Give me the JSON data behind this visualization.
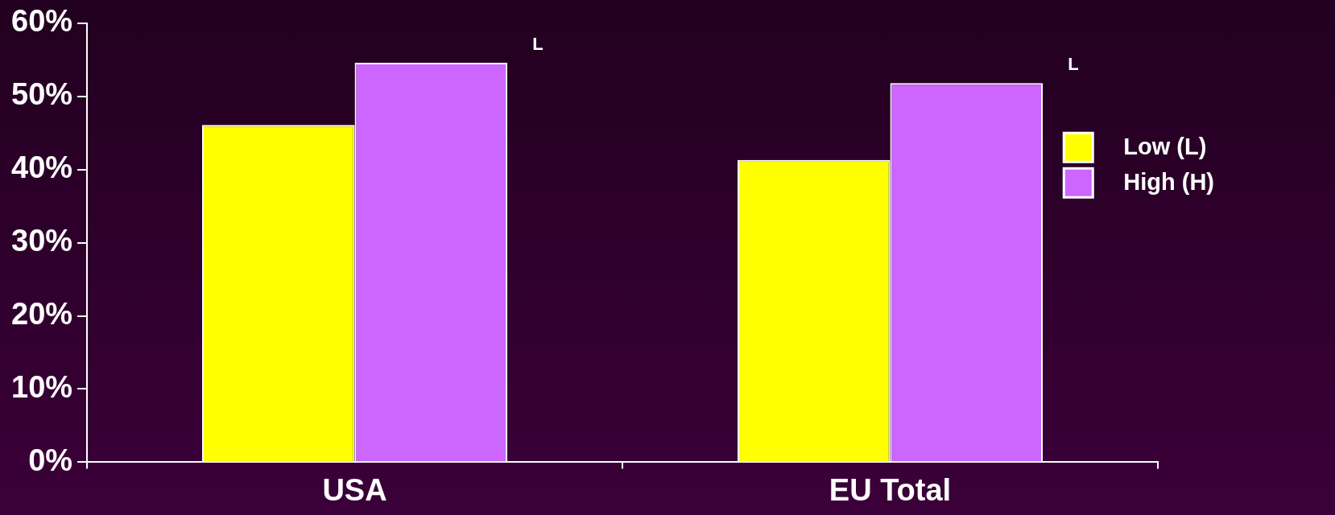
{
  "chart_data": {
    "type": "bar",
    "categories": [
      "USA",
      "EU Total"
    ],
    "series": [
      {
        "name": "Low (L)",
        "color": "#ffff00",
        "values": [
          46.1,
          41.3
        ]
      },
      {
        "name": "High (H)",
        "color": "#cc66ff",
        "values": [
          54.6,
          51.8
        ]
      }
    ],
    "ylim": [
      0,
      60
    ],
    "yticks": [
      {
        "value": 0,
        "label": "0%"
      },
      {
        "value": 10,
        "label": "10%"
      },
      {
        "value": 20,
        "label": "20%"
      },
      {
        "value": 30,
        "label": "30%"
      },
      {
        "value": 40,
        "label": "40%"
      },
      {
        "value": 50,
        "label": "50%"
      },
      {
        "value": 60,
        "label": "60%"
      }
    ],
    "annotations": [
      "L",
      "L"
    ],
    "legend": "right",
    "grid": false
  }
}
